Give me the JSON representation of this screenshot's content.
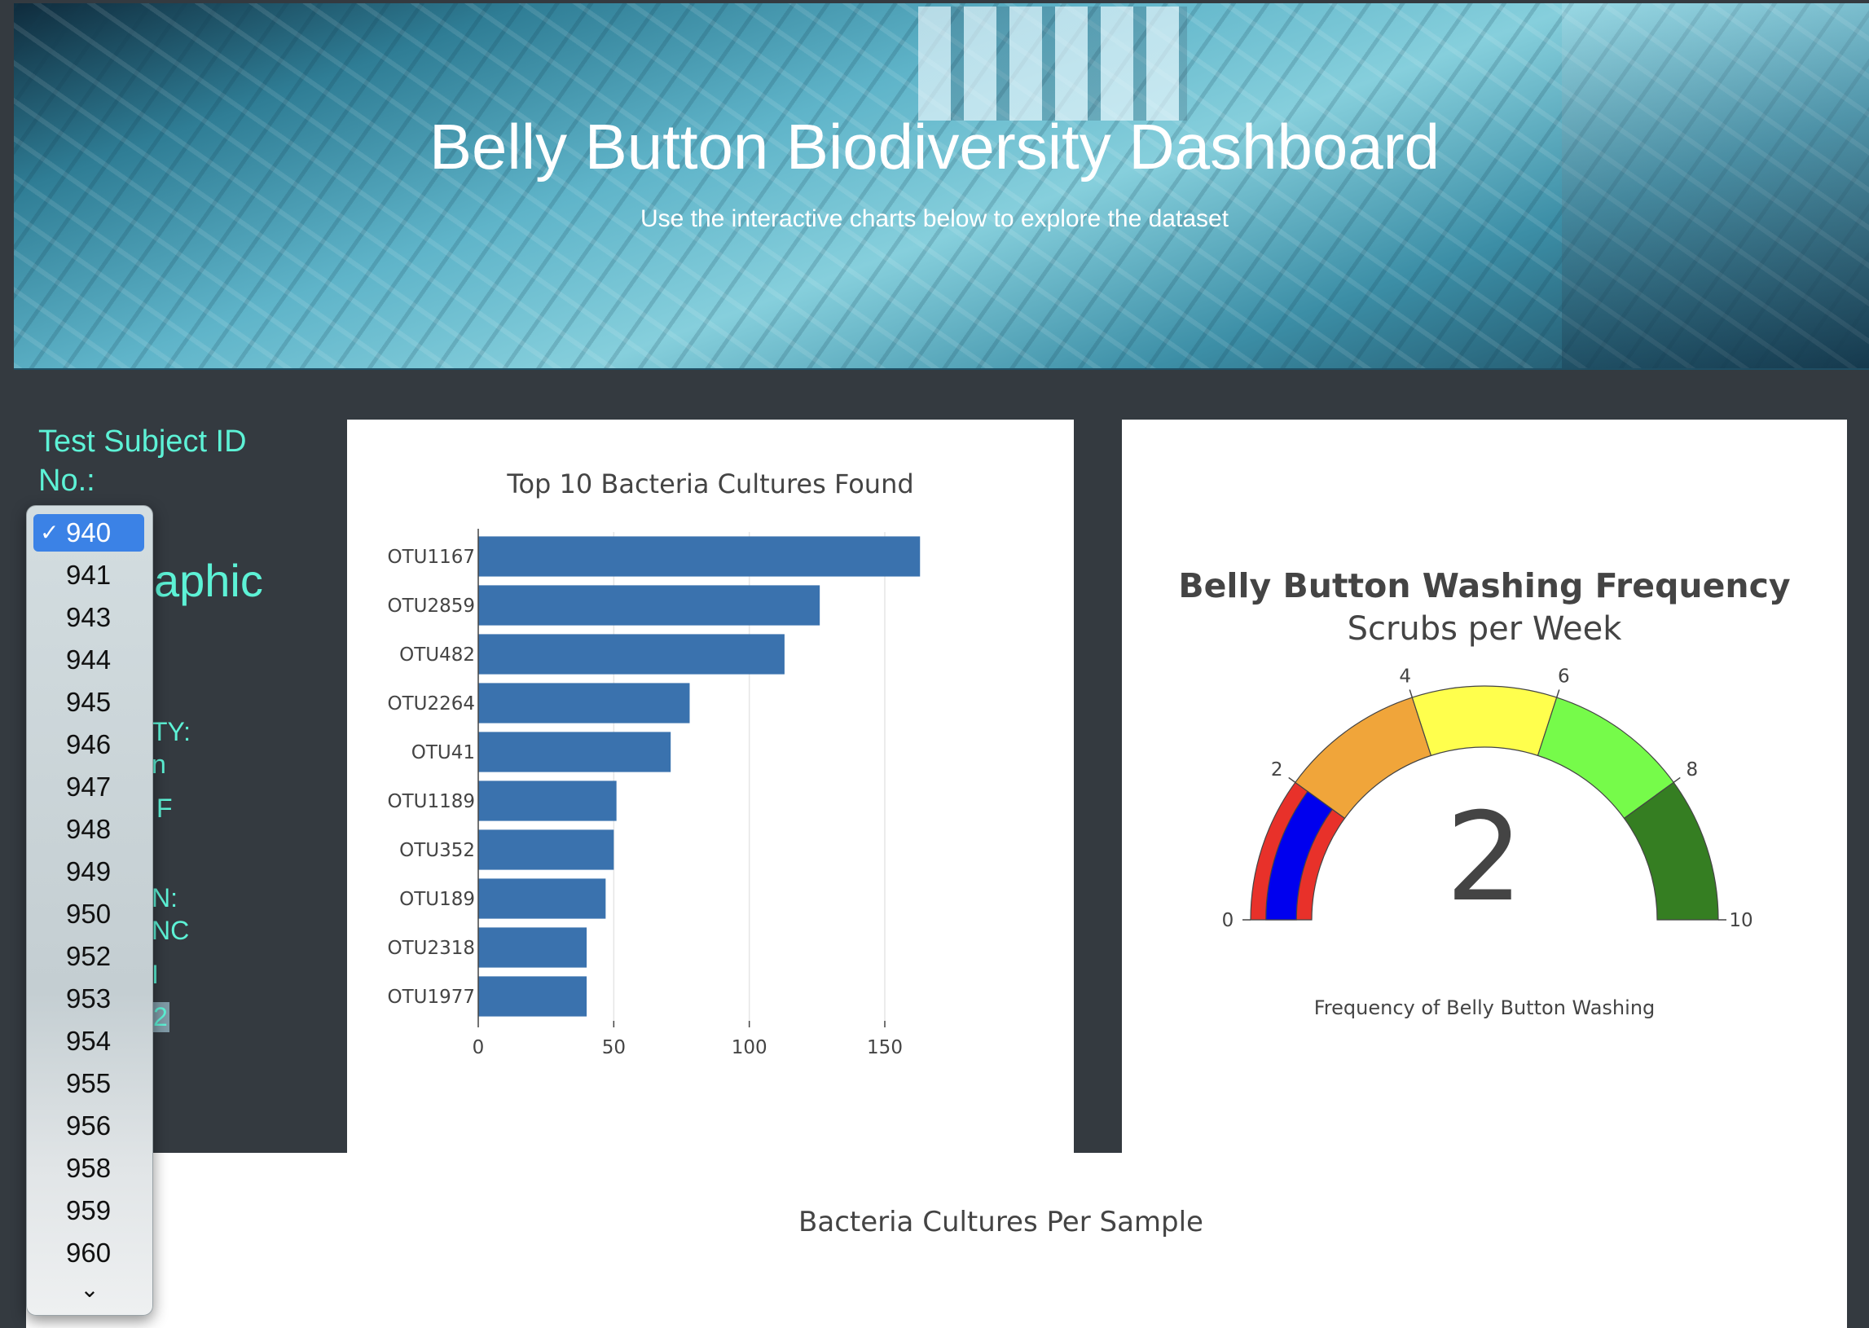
{
  "header": {
    "title": "Belly Button Biodiversity Dashboard",
    "subtitle": "Use the interactive charts below to explore the dataset"
  },
  "sidebar": {
    "subject_label": "Test Subject ID No.:",
    "demographic_fragment": "ographic",
    "visible_fragments": [
      "TY:",
      "n",
      "F",
      "N:",
      "NC",
      "I",
      "2"
    ]
  },
  "dropdown": {
    "selected": "940",
    "options": [
      "940",
      "941",
      "943",
      "944",
      "945",
      "946",
      "947",
      "948",
      "949",
      "950",
      "952",
      "953",
      "954",
      "955",
      "956",
      "958",
      "959",
      "960"
    ],
    "more_indicator": "⌄"
  },
  "colors": {
    "accent_text": "#5df2d6",
    "bar_color": "#3a72ae",
    "selected_option": "#3b82e6",
    "background": "#343a40"
  },
  "chart_data": [
    {
      "type": "bar",
      "orientation": "horizontal",
      "title": "Top 10 Bacteria Cultures Found",
      "categories": [
        "OTU1167",
        "OTU2859",
        "OTU482",
        "OTU2264",
        "OTU41",
        "OTU1189",
        "OTU352",
        "OTU189",
        "OTU2318",
        "OTU1977"
      ],
      "values": [
        163,
        126,
        113,
        78,
        71,
        51,
        50,
        47,
        40,
        40
      ],
      "xlim": [
        0,
        175
      ],
      "xticks": [
        "0",
        "50",
        "100",
        "150"
      ],
      "grid": true
    },
    {
      "type": "gauge",
      "title": "Belly Button Washing Frequency",
      "subtitle": "Scrubs per Week",
      "value": 2,
      "range": [
        0,
        10
      ],
      "ticks": [
        "0",
        "2",
        "4",
        "6",
        "8",
        "10"
      ],
      "xlabel": "Frequency of Belly Button Washing",
      "steps": [
        {
          "range": [
            0,
            2
          ],
          "color": "#e8312a"
        },
        {
          "range": [
            2,
            4
          ],
          "color": "#f0a53a"
        },
        {
          "range": [
            4,
            6
          ],
          "color": "#ffff4d"
        },
        {
          "range": [
            6,
            8
          ],
          "color": "#76fb4a"
        },
        {
          "range": [
            8,
            10
          ],
          "color": "#357e22"
        }
      ],
      "bar_color": "#0000ee"
    },
    {
      "type": "scatter",
      "title": "Bacteria Cultures Per Sample"
    }
  ]
}
